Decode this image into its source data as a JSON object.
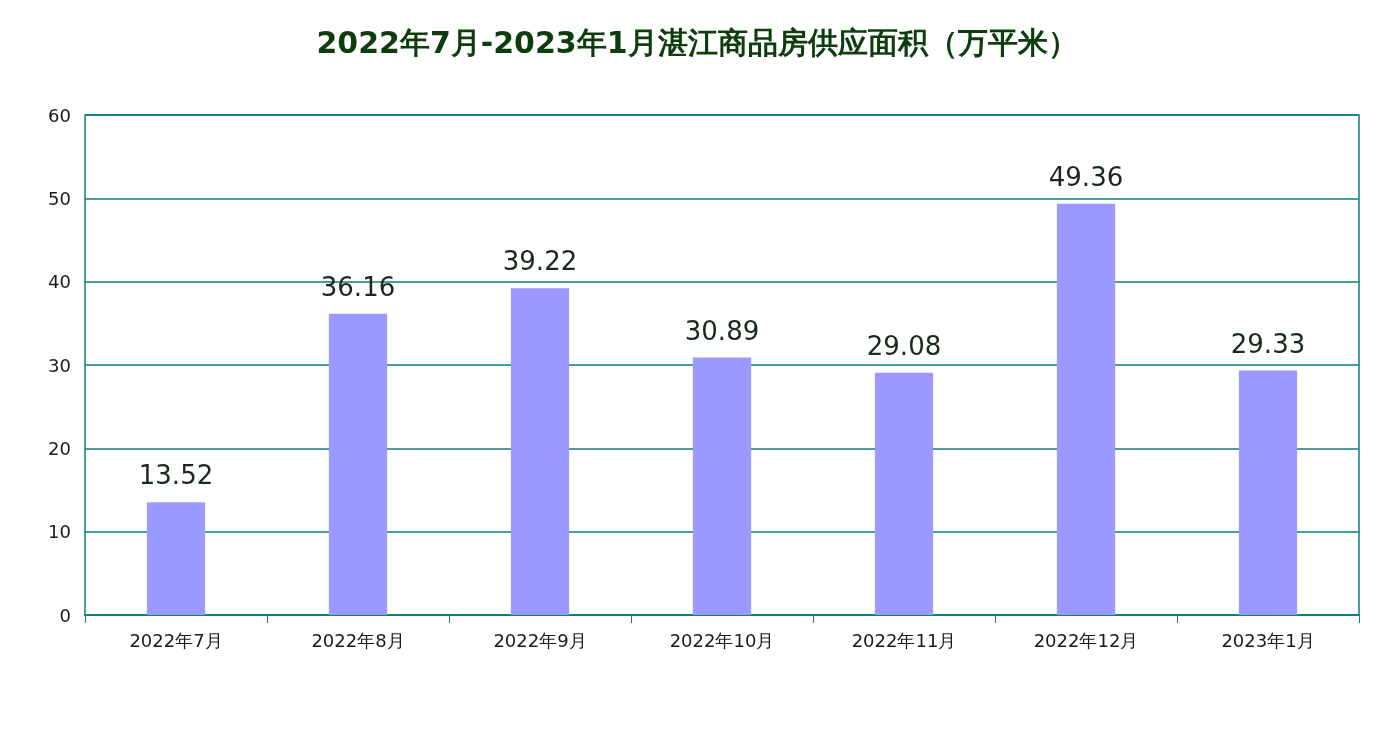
{
  "chart_data": {
    "type": "bar",
    "title": "2022年7月-2023年1月湛江商品房供应面积（万平米）",
    "categories": [
      "2022年7月",
      "2022年8月",
      "2022年9月",
      "2022年10月",
      "2022年11月",
      "2022年12月",
      "2023年1月"
    ],
    "values": [
      13.52,
      36.16,
      39.22,
      30.89,
      29.08,
      49.36,
      29.33
    ],
    "color": "#9999ff",
    "ylim": [
      0,
      60
    ],
    "yticks": [
      0,
      10,
      20,
      30,
      40,
      50,
      60
    ],
    "grid": "y",
    "data_labels": true
  }
}
